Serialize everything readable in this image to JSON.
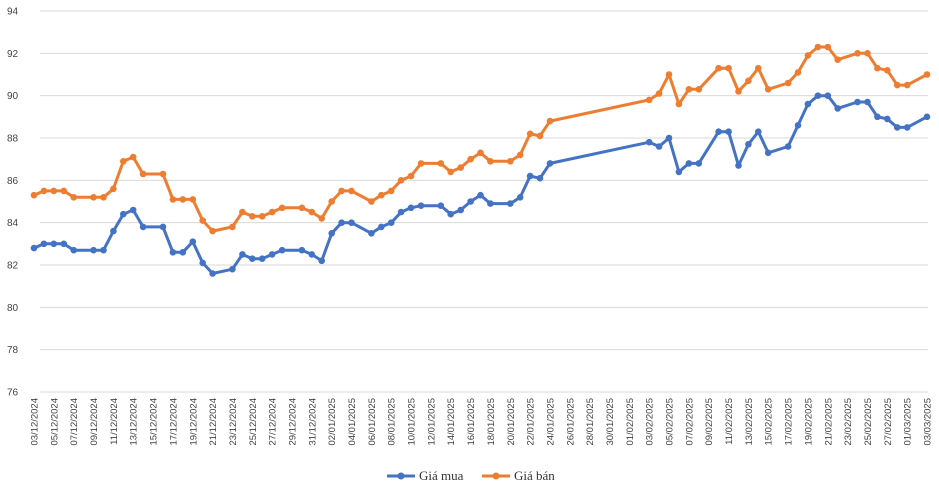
{
  "chart_data": {
    "type": "line",
    "title": "",
    "xlabel": "",
    "ylabel": "",
    "ylim": [
      76,
      94
    ],
    "yticks": [
      76,
      78,
      80,
      82,
      84,
      86,
      88,
      90,
      92,
      94
    ],
    "grid": true,
    "legend_position": "bottom-center",
    "x_tick_labels": [
      "03/12/2024",
      "05/12/2024",
      "07/12/2024",
      "09/12/2024",
      "11/12/2024",
      "13/12/2024",
      "15/12/2024",
      "17/12/2024",
      "19/12/2024",
      "21/12/2024",
      "23/12/2024",
      "25/12/2024",
      "27/12/2024",
      "29/12/2024",
      "31/12/2024",
      "02/01/2025",
      "04/01/2025",
      "06/01/2025",
      "08/01/2025",
      "10/01/2025",
      "12/01/2025",
      "14/01/2025",
      "16/01/2025",
      "18/01/2025",
      "20/01/2025",
      "22/01/2025",
      "24/01/2025",
      "26/01/2025",
      "28/01/2025",
      "30/01/2025",
      "01/02/2025",
      "03/02/2025",
      "05/02/2025",
      "07/02/2025",
      "09/02/2025",
      "11/02/2025",
      "13/02/2025",
      "15/02/2025",
      "17/02/2025",
      "19/02/2025",
      "21/02/2025",
      "23/02/2025",
      "25/02/2025",
      "27/02/2025",
      "01/03/2025",
      "03/03/2025"
    ],
    "x": [
      "03/12/2024",
      "04/12/2024",
      "05/12/2024",
      "06/12/2024",
      "07/12/2024",
      "09/12/2024",
      "10/12/2024",
      "11/12/2024",
      "12/12/2024",
      "13/12/2024",
      "14/12/2024",
      "16/12/2024",
      "17/12/2024",
      "18/12/2024",
      "19/12/2024",
      "20/12/2024",
      "21/12/2024",
      "23/12/2024",
      "24/12/2024",
      "25/12/2024",
      "26/12/2024",
      "27/12/2024",
      "28/12/2024",
      "30/12/2024",
      "31/12/2024",
      "01/01/2025",
      "02/01/2025",
      "03/01/2025",
      "04/01/2025",
      "06/01/2025",
      "07/01/2025",
      "08/01/2025",
      "09/01/2025",
      "10/01/2025",
      "11/01/2025",
      "13/01/2025",
      "14/01/2025",
      "15/01/2025",
      "16/01/2025",
      "17/01/2025",
      "18/01/2025",
      "20/01/2025",
      "21/01/2025",
      "22/01/2025",
      "23/01/2025",
      "24/01/2025",
      "03/02/2025",
      "04/02/2025",
      "05/02/2025",
      "06/02/2025",
      "07/02/2025",
      "08/02/2025",
      "10/02/2025",
      "11/02/2025",
      "12/02/2025",
      "13/02/2025",
      "14/02/2025",
      "15/02/2025",
      "17/02/2025",
      "18/02/2025",
      "19/02/2025",
      "20/02/2025",
      "21/02/2025",
      "22/02/2025",
      "24/02/2025",
      "25/02/2025",
      "26/02/2025",
      "27/02/2025",
      "28/02/2025",
      "01/03/2025",
      "03/03/2025"
    ],
    "series": [
      {
        "name": "Giá mua",
        "color": "#4472C4",
        "values": [
          82.8,
          83.0,
          83.0,
          83.0,
          82.7,
          82.7,
          82.7,
          83.6,
          84.4,
          84.6,
          83.8,
          83.8,
          82.6,
          82.6,
          83.1,
          82.1,
          81.6,
          81.8,
          82.5,
          82.3,
          82.3,
          82.5,
          82.7,
          82.7,
          82.5,
          82.2,
          83.5,
          84.0,
          84.0,
          83.5,
          83.8,
          84.0,
          84.5,
          84.7,
          84.8,
          84.8,
          84.4,
          84.6,
          85.0,
          85.3,
          84.9,
          84.9,
          85.2,
          86.2,
          86.1,
          86.8,
          87.8,
          87.6,
          88.0,
          86.4,
          86.8,
          86.8,
          88.3,
          88.3,
          86.7,
          87.7,
          88.3,
          87.3,
          87.6,
          88.6,
          89.6,
          90.0,
          90.0,
          89.4,
          89.7,
          89.7,
          89.0,
          88.9,
          88.5,
          88.5,
          89.0
        ]
      },
      {
        "name": "Giá bán",
        "color": "#ED7D31",
        "values": [
          85.3,
          85.5,
          85.5,
          85.5,
          85.2,
          85.2,
          85.2,
          85.6,
          86.9,
          87.1,
          86.3,
          86.3,
          85.1,
          85.1,
          85.1,
          84.1,
          83.6,
          83.8,
          84.5,
          84.3,
          84.3,
          84.5,
          84.7,
          84.7,
          84.5,
          84.2,
          85.0,
          85.5,
          85.5,
          85.0,
          85.3,
          85.5,
          86.0,
          86.2,
          86.8,
          86.8,
          86.4,
          86.6,
          87.0,
          87.3,
          86.9,
          86.9,
          87.2,
          88.2,
          88.1,
          88.8,
          89.8,
          90.1,
          91.0,
          89.6,
          90.3,
          90.3,
          91.3,
          91.3,
          90.2,
          90.7,
          91.3,
          90.3,
          90.6,
          91.1,
          91.9,
          92.3,
          92.3,
          91.7,
          92.0,
          92.0,
          91.3,
          91.2,
          90.5,
          90.5,
          91.0
        ]
      }
    ]
  }
}
